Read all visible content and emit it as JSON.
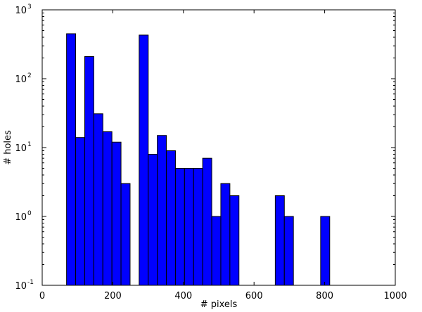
{
  "chart_data": {
    "type": "bar",
    "subtype": "histogram",
    "title": "",
    "xlabel": "# pixels",
    "ylabel": "# holes",
    "xlim": [
      0,
      1000
    ],
    "ylim": [
      0.1,
      1000
    ],
    "yscale": "log",
    "grid": false,
    "legend": "none",
    "x_ticks": [
      0,
      200,
      400,
      600,
      800,
      1000
    ],
    "x_tick_labels": [
      "0",
      "200",
      "400",
      "600",
      "800",
      "1000"
    ],
    "y_ticks": [
      0.1,
      1,
      10,
      100,
      1000
    ],
    "y_tick_labels": [
      {
        "base": "10",
        "exp": "-1"
      },
      {
        "base": "10",
        "exp": "0"
      },
      {
        "base": "10",
        "exp": "1"
      },
      {
        "base": "10",
        "exp": "2"
      },
      {
        "base": "10",
        "exp": "3"
      }
    ],
    "bin_width": 25.7,
    "bins": [
      {
        "x0": 69.0,
        "count": 450
      },
      {
        "x0": 94.7,
        "count": 14
      },
      {
        "x0": 120.4,
        "count": 210
      },
      {
        "x0": 146.1,
        "count": 31
      },
      {
        "x0": 171.8,
        "count": 17
      },
      {
        "x0": 197.5,
        "count": 12
      },
      {
        "x0": 223.2,
        "count": 3
      },
      {
        "x0": 248.9,
        "count": 0
      },
      {
        "x0": 274.6,
        "count": 430
      },
      {
        "x0": 300.3,
        "count": 8
      },
      {
        "x0": 326.0,
        "count": 15
      },
      {
        "x0": 351.7,
        "count": 9
      },
      {
        "x0": 377.4,
        "count": 5
      },
      {
        "x0": 403.1,
        "count": 5
      },
      {
        "x0": 428.8,
        "count": 5
      },
      {
        "x0": 454.5,
        "count": 7
      },
      {
        "x0": 480.2,
        "count": 1
      },
      {
        "x0": 505.9,
        "count": 3
      },
      {
        "x0": 531.6,
        "count": 2
      },
      {
        "x0": 557.3,
        "count": 0
      },
      {
        "x0": 583.0,
        "count": 0
      },
      {
        "x0": 608.7,
        "count": 0
      },
      {
        "x0": 634.4,
        "count": 0
      },
      {
        "x0": 660.1,
        "count": 2
      },
      {
        "x0": 685.8,
        "count": 1
      },
      {
        "x0": 711.5,
        "count": 0
      },
      {
        "x0": 737.2,
        "count": 0
      },
      {
        "x0": 762.9,
        "count": 0
      },
      {
        "x0": 788.6,
        "count": 1
      }
    ],
    "bar_color": "#0000ff",
    "edge_color": "#000000"
  }
}
